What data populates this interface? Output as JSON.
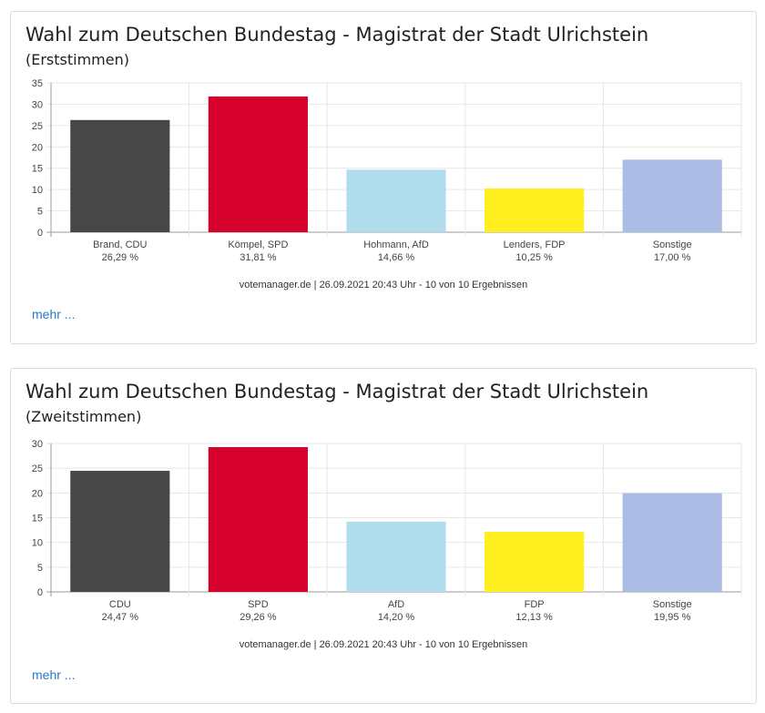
{
  "charts": [
    {
      "title": "Wahl zum Deutschen Bundestag - Magistrat der Stadt Ulrichstein",
      "subtitle": "(Erststimmen)",
      "footer": "votemanager.de | 26.09.2021 20:43 Uhr - 10 von 10 Ergebnissen",
      "more": "mehr ..."
    },
    {
      "title": "Wahl zum Deutschen Bundestag - Magistrat der Stadt Ulrichstein",
      "subtitle": "(Zweitstimmen)",
      "footer": "votemanager.de | 26.09.2021 20:43 Uhr - 10 von 10 Ergebnissen",
      "more": "mehr ..."
    }
  ],
  "chart_data": [
    {
      "type": "bar",
      "title": "Wahl zum Deutschen Bundestag - Magistrat der Stadt Ulrichstein",
      "subtitle": "(Erststimmen)",
      "categories": [
        "Brand, CDU",
        "Kömpel, SPD",
        "Hohmann, AfD",
        "Lenders, FDP",
        "Sonstige"
      ],
      "value_labels": [
        "26,29 %",
        "31,81 %",
        "14,66 %",
        "10,25 %",
        "17,00 %"
      ],
      "values": [
        26.29,
        31.81,
        14.66,
        10.25,
        17.0
      ],
      "colors": [
        "#474747",
        "#d5002c",
        "#b1dcec",
        "#ffef1f",
        "#abbde5"
      ],
      "ylim": [
        0,
        35
      ],
      "yticks": [
        0,
        5,
        10,
        15,
        20,
        25,
        30,
        35
      ],
      "grid": true,
      "xlabel": "",
      "ylabel": ""
    },
    {
      "type": "bar",
      "title": "Wahl zum Deutschen Bundestag - Magistrat der Stadt Ulrichstein",
      "subtitle": "(Zweitstimmen)",
      "categories": [
        "CDU",
        "SPD",
        "AfD",
        "FDP",
        "Sonstige"
      ],
      "value_labels": [
        "24,47 %",
        "29,26 %",
        "14,20 %",
        "12,13 %",
        "19,95 %"
      ],
      "values": [
        24.47,
        29.26,
        14.2,
        12.13,
        19.95
      ],
      "colors": [
        "#474747",
        "#d5002c",
        "#b1dcec",
        "#ffef1f",
        "#abbde5"
      ],
      "ylim": [
        0,
        30
      ],
      "yticks": [
        0,
        5,
        10,
        15,
        20,
        25,
        30
      ],
      "grid": true,
      "xlabel": "",
      "ylabel": ""
    }
  ]
}
